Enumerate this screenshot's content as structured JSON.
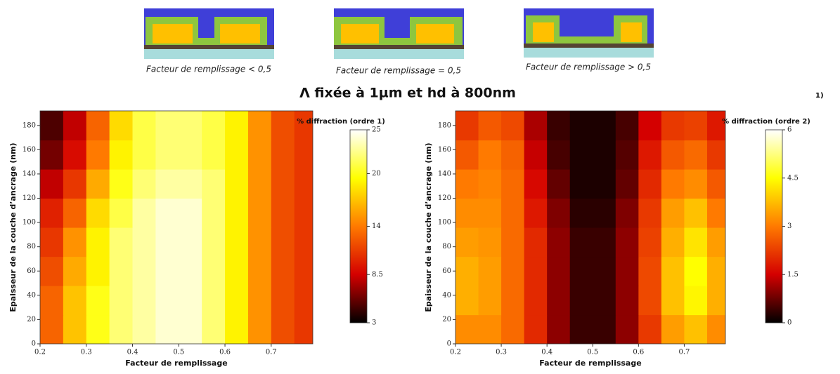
{
  "header": {
    "diagrams": [
      {
        "caption": "Facteur de remplissage < 0,5"
      },
      {
        "caption": "Facteur de remplissage = 0,5"
      },
      {
        "caption": "Facteur de remplissage > 0,5"
      }
    ],
    "title": "Λ fixée à 1µm et hd à 800nm",
    "note": "1)"
  },
  "chart_data": [
    {
      "type": "heatmap",
      "x_label": "Facteur de remplissage",
      "y_label": "Epaisseur de la couche d’ancrage (nm)",
      "colorbar_label": "% diffraction (ordre 1)",
      "colormap": [
        "#000000",
        "#d40000",
        "#ff7a00",
        "#ffff00",
        "#ffffff"
      ],
      "x": [
        0.225,
        0.275,
        0.325,
        0.375,
        0.425,
        0.475,
        0.525,
        0.575,
        0.625,
        0.675,
        0.725,
        0.775
      ],
      "y": [
        12,
        36,
        60,
        84,
        108,
        132,
        156,
        180
      ],
      "values": [
        [
          13,
          17,
          20,
          22,
          23,
          24,
          24,
          22,
          19,
          15,
          12,
          11
        ],
        [
          13,
          17,
          20,
          22,
          23,
          24,
          24,
          22,
          19,
          15,
          12,
          11
        ],
        [
          12,
          16,
          19,
          22,
          23,
          24,
          24,
          22,
          19,
          15,
          12,
          11
        ],
        [
          11,
          15,
          19,
          22,
          23,
          24,
          24,
          22,
          19,
          15,
          12,
          11
        ],
        [
          10,
          13,
          18,
          21,
          23,
          24,
          24,
          22,
          19,
          15,
          12,
          11
        ],
        [
          8,
          11,
          16,
          20,
          22,
          23,
          23,
          22,
          19,
          15,
          12,
          11
        ],
        [
          6,
          9,
          14,
          19,
          21,
          22,
          22,
          21,
          19,
          15,
          12,
          11
        ],
        [
          5,
          8,
          13,
          18,
          21,
          22,
          22,
          21,
          19,
          15,
          12,
          11
        ]
      ],
      "xlim": [
        0.2,
        0.79
      ],
      "xticks": [
        0.2,
        0.3,
        0.4,
        0.5,
        0.6,
        0.7
      ],
      "ylim": [
        0,
        192
      ],
      "yticks": [
        0,
        20,
        40,
        60,
        80,
        100,
        120,
        140,
        160,
        180
      ],
      "clim": [
        3,
        25
      ],
      "cticks": [
        3,
        8.5,
        14,
        20,
        25
      ]
    },
    {
      "type": "heatmap",
      "x_label": "Facteur de remplissage",
      "y_label": "Epaisseur de la couche d’ancrage (nm)",
      "colorbar_label": "% diffraction (ordre 2)",
      "colormap": [
        "#000000",
        "#d40000",
        "#ff7a00",
        "#ffff00",
        "#ffffff"
      ],
      "x": [
        0.225,
        0.275,
        0.325,
        0.375,
        0.425,
        0.475,
        0.525,
        0.575,
        0.625,
        0.675,
        0.725,
        0.775
      ],
      "y": [
        12,
        36,
        60,
        84,
        108,
        132,
        156,
        180
      ],
      "values": [
        [
          3.2,
          3.2,
          2.8,
          2,
          1,
          0.4,
          0.4,
          1,
          2.2,
          3.4,
          3.8,
          3.2
        ],
        [
          3.6,
          3.4,
          2.8,
          2,
          1,
          0.4,
          0.4,
          1,
          2.4,
          3.8,
          4.4,
          3.6
        ],
        [
          3.6,
          3.4,
          2.8,
          2,
          1,
          0.4,
          0.4,
          1,
          2.4,
          3.8,
          4.5,
          3.6
        ],
        [
          3.4,
          3.3,
          2.8,
          2,
          1,
          0.4,
          0.4,
          1,
          2.3,
          3.6,
          4.2,
          3.4
        ],
        [
          3.2,
          3.2,
          2.8,
          1.8,
          0.9,
          0.3,
          0.3,
          0.9,
          2.2,
          3.4,
          3.8,
          3
        ],
        [
          3,
          3.1,
          2.8,
          1.6,
          0.7,
          0.2,
          0.2,
          0.7,
          2,
          3,
          3.2,
          2.6
        ],
        [
          2.6,
          3,
          2.7,
          1.4,
          0.5,
          0.2,
          0.2,
          0.6,
          1.8,
          2.6,
          2.8,
          2.2
        ],
        [
          2.2,
          2.6,
          2.4,
          1.2,
          0.4,
          0.2,
          0.2,
          0.5,
          1.5,
          2.2,
          2.3,
          1.8
        ]
      ],
      "xlim": [
        0.2,
        0.79
      ],
      "xticks": [
        0.2,
        0.3,
        0.4,
        0.5,
        0.6,
        0.7
      ],
      "ylim": [
        0,
        192
      ],
      "yticks": [
        0,
        20,
        40,
        60,
        80,
        100,
        120,
        140,
        160,
        180
      ],
      "clim": [
        0,
        6
      ],
      "cticks": [
        0,
        1.5,
        3,
        4.5,
        6
      ]
    }
  ]
}
